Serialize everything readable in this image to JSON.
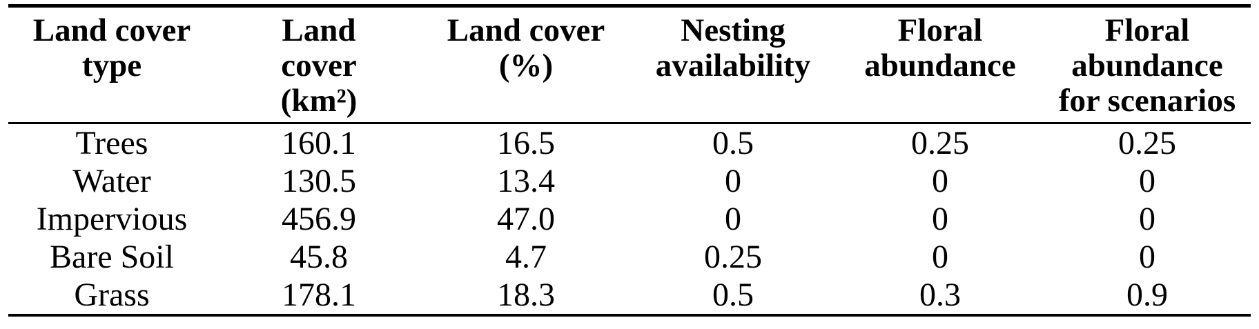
{
  "table": {
    "columns": [
      "Land cover\ntype",
      "Land\ncover\n(km²)",
      "Land cover\n(%)",
      "Nesting\navailability",
      "Floral\nabundance",
      "Floral\nabundance\nfor scenarios"
    ],
    "rows": [
      [
        "Trees",
        "160.1",
        "16.5",
        "0.5",
        "0.25",
        "0.25"
      ],
      [
        "Water",
        "130.5",
        "13.4",
        "0",
        "0",
        "0"
      ],
      [
        "Impervious",
        "456.9",
        "47.0",
        "0",
        "0",
        "0"
      ],
      [
        "Bare Soil",
        "45.8",
        "4.7",
        "0.25",
        "0",
        "0"
      ],
      [
        "Grass",
        "178.1",
        "18.3",
        "0.5",
        "0.3",
        "0.9"
      ]
    ]
  },
  "colors": {
    "text": "#000000",
    "background": "#ffffff",
    "rule": "#000000"
  },
  "chart_data": {
    "type": "table",
    "columns": [
      "Land cover type",
      "Land cover (km²)",
      "Land cover (%)",
      "Nesting availability",
      "Floral abundance",
      "Floral abundance for scenarios"
    ],
    "rows": [
      [
        "Trees",
        160.1,
        16.5,
        0.5,
        0.25,
        0.25
      ],
      [
        "Water",
        130.5,
        13.4,
        0,
        0,
        0
      ],
      [
        "Impervious",
        456.9,
        47.0,
        0,
        0,
        0
      ],
      [
        "Bare Soil",
        45.8,
        4.7,
        0.25,
        0,
        0
      ],
      [
        "Grass",
        178.1,
        18.3,
        0.5,
        0.3,
        0.9
      ]
    ]
  }
}
